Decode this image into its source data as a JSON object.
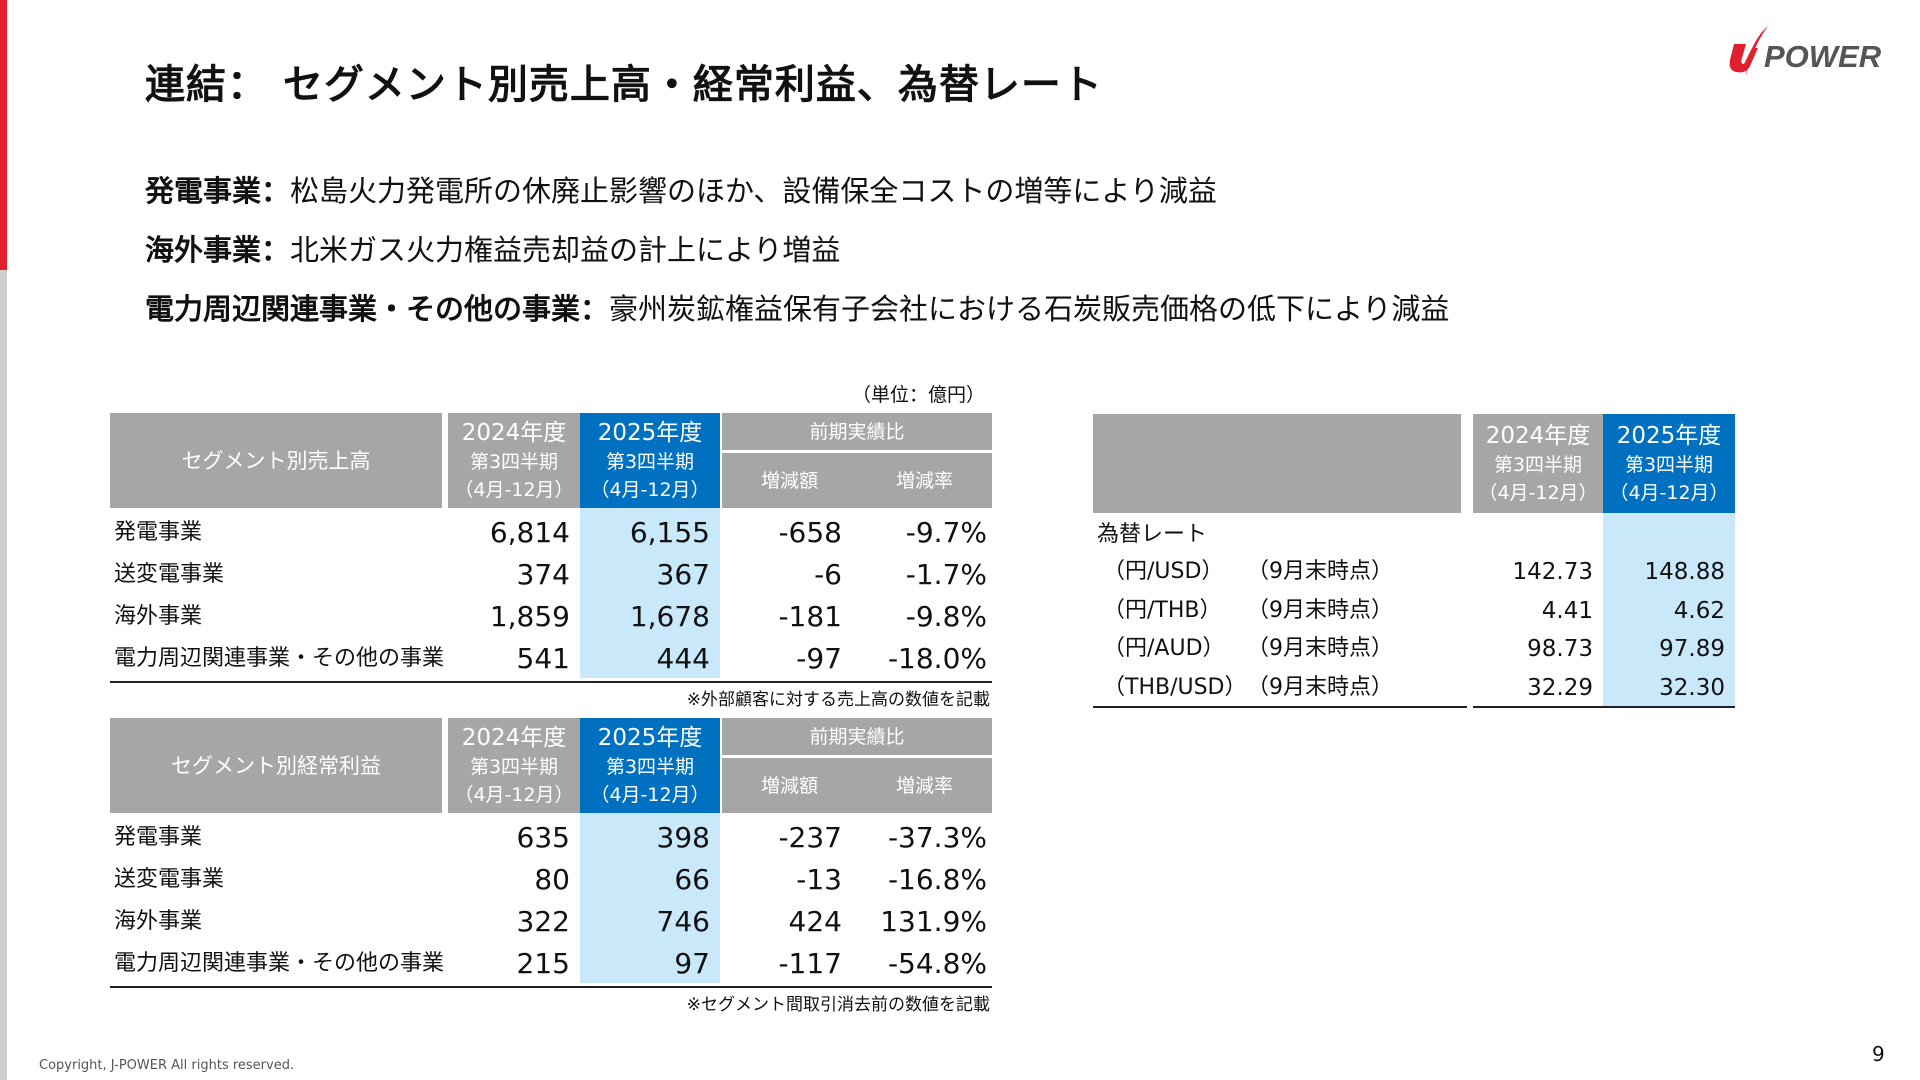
{
  "header": {
    "title": "連結： セグメント別売上高・経常利益、為替レート",
    "logo_text": "J-POWER"
  },
  "bullets": [
    {
      "label": "発電事業：",
      "text": "松島火力発電所の休廃止影響のほか、設備保全コストの増等により減益"
    },
    {
      "label": "海外事業：",
      "text": "北米ガス火力権益売却益の計上により増益"
    },
    {
      "label": "電力周辺関連事業・その他の事業：",
      "text": "豪州炭鉱権益保有子会社における石炭販売価格の低下により減益"
    }
  ],
  "unit": "（単位：億円）",
  "col_headers": {
    "fy2024": "2024年度",
    "fy2025": "2025年度",
    "period": "第3四半期",
    "months": "（4月-12月）",
    "compare": "前期実績比",
    "diff": "増減額",
    "rate": "増減率"
  },
  "sales_table": {
    "title": "セグメント別売上高",
    "rows": [
      {
        "label": "発電事業",
        "fy2024": "6,814",
        "fy2025": "6,155",
        "diff": "-658",
        "rate": "-9.7%"
      },
      {
        "label": "送変電事業",
        "fy2024": "374",
        "fy2025": "367",
        "diff": "-6",
        "rate": "-1.7%"
      },
      {
        "label": "海外事業",
        "fy2024": "1,859",
        "fy2025": "1,678",
        "diff": "-181",
        "rate": "-9.8%"
      },
      {
        "label": "電力周辺関連事業・その他の事業",
        "fy2024": "541",
        "fy2025": "444",
        "diff": "-97",
        "rate": "-18.0%"
      }
    ],
    "note": "※外部顧客に対する売上高の数値を記載"
  },
  "profit_table": {
    "title": "セグメント別経常利益",
    "rows": [
      {
        "label": "発電事業",
        "fy2024": "635",
        "fy2025": "398",
        "diff": "-237",
        "rate": "-37.3%"
      },
      {
        "label": "送変電事業",
        "fy2024": "80",
        "fy2025": "66",
        "diff": "-13",
        "rate": "-16.8%"
      },
      {
        "label": "海外事業",
        "fy2024": "322",
        "fy2025": "746",
        "diff": "424",
        "rate": "131.9%"
      },
      {
        "label": "電力周辺関連事業・その他の事業",
        "fy2024": "215",
        "fy2025": "97",
        "diff": "-117",
        "rate": "-54.8%"
      }
    ],
    "note": "※セグメント間取引消去前の数値を記載"
  },
  "fx_table": {
    "section_label": "為替レート",
    "rows": [
      {
        "pair": "（円/USD）",
        "basis": "（9月末時点）",
        "fy2024": "142.73",
        "fy2025": "148.88"
      },
      {
        "pair": "（円/THB）",
        "basis": "（9月末時点）",
        "fy2024": "4.41",
        "fy2025": "4.62"
      },
      {
        "pair": "（円/AUD）",
        "basis": "（9月末時点）",
        "fy2024": "98.73",
        "fy2025": "97.89"
      },
      {
        "pair": "（THB/USD）",
        "basis": "（9月末時点）",
        "fy2024": "32.29",
        "fy2025": "32.30"
      }
    ]
  },
  "footer": {
    "copyright": "Copyright, J-POWER All rights reserved.",
    "page": "9"
  },
  "colors": {
    "header_grey": "#a6a6a6",
    "header_blue": "#0070c0",
    "highlight_blue": "#c9e9fb",
    "accent_red": "#e0202e"
  }
}
